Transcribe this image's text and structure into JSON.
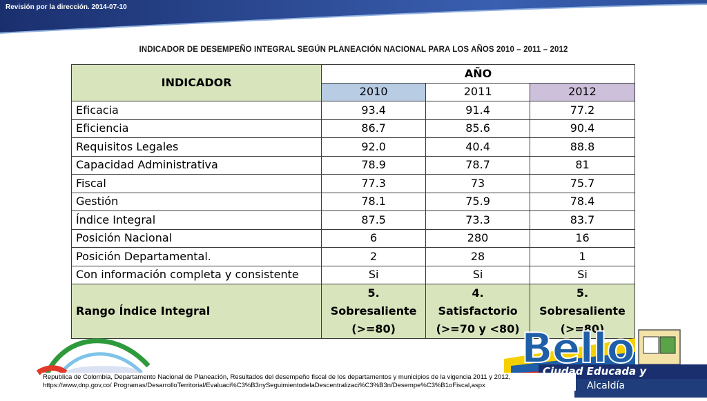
{
  "header": {
    "text": "Revisión por la dirección. 2014-07-10"
  },
  "title": "INDICADOR DE DESEMPEÑO INTEGRAL SEGÚN PLANEACIÓN NACIONAL PARA LOS AÑOS 2010 – 2011 – 2012",
  "table": {
    "col_indicador": "INDICADOR",
    "col_ano": "AÑO",
    "years": [
      "2010",
      "2011",
      "2012"
    ],
    "rows": [
      {
        "label": "Eficacia",
        "values": [
          "93.4",
          "91.4",
          "77.2"
        ]
      },
      {
        "label": "Eficiencia",
        "values": [
          "86.7",
          "85.6",
          "90.4"
        ]
      },
      {
        "label": "Requisitos Legales",
        "values": [
          "92.0",
          "40.4",
          "88.8"
        ]
      },
      {
        "label": "Capacidad Administrativa",
        "values": [
          "78.9",
          "78.7",
          "81"
        ]
      },
      {
        "label": "Fiscal",
        "values": [
          "77.3",
          "73",
          "75.7"
        ]
      },
      {
        "label": "Gestión",
        "values": [
          "78.1",
          "75.9",
          "78.4"
        ]
      },
      {
        "label": "Índice Integral",
        "values": [
          "87.5",
          "73.3",
          "83.7"
        ]
      },
      {
        "label": "Posición Nacional",
        "values": [
          "6",
          "280",
          "16"
        ]
      },
      {
        "label": "Posición Departamental.",
        "values": [
          "2",
          "28",
          "1"
        ]
      },
      {
        "label": "Con información completa y consistente",
        "values": [
          "Si",
          "Si",
          "Si"
        ]
      }
    ],
    "rango": {
      "label": "Rango Índice Integral",
      "values": [
        {
          "line1": "5. Sobresaliente",
          "line2": "(>=80)"
        },
        {
          "line1": "4. Satisfactorio",
          "line2": "(>=70 y <80)"
        },
        {
          "line1": "5. Sobresaliente",
          "line2": "(>=80)"
        }
      ]
    }
  },
  "footnote": {
    "line1": "Republica de Colombia, Departamento Nacional de Planeación, Resultados del desempeño fiscal de los departamentos y municipios de la vigencia 2011 y 2012,",
    "line2": "https://www,dnp,gov,co/ Programas/DesarrolloTerritorial/Evaluaci%C3%B3nySeguimientodelaDescentralizaci%C3%B3n/Desempe%C3%B1oFiscal,aspx"
  },
  "logo_right": {
    "word": "Bello",
    "slogan": "Ciudad Educada y Competitiva",
    "alcaldia": "Alcaldía"
  },
  "colors": {
    "banner_dark": "#1a2f6e",
    "banner_light": "#2c4f9a",
    "indicador_header": "#d8e4bc",
    "year_2010": "#b8cce4",
    "year_2012": "#ccc0da"
  }
}
